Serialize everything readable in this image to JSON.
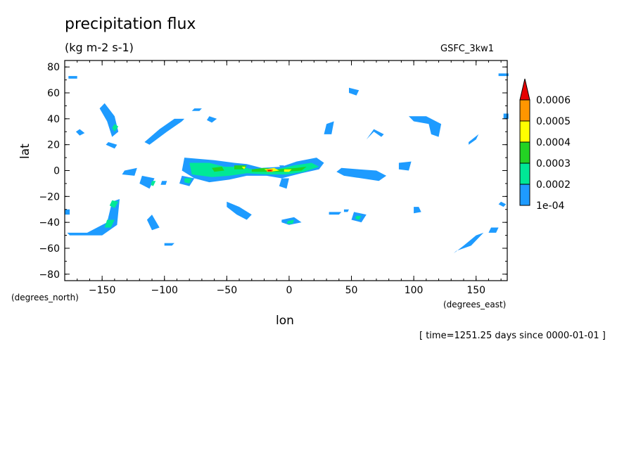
{
  "chart_data": {
    "type": "heatmap",
    "title": "precipitation flux",
    "units": "(kg m-2 s-1)",
    "source": "GSFC_3kw1",
    "xlabel": "lon",
    "ylabel": "lat",
    "x_units": "(degrees_east)",
    "y_units": "(degrees_north)",
    "time_label": "[ time=1251.25 days since 0000-01-01 ]",
    "xlim": [
      -180,
      175
    ],
    "ylim": [
      -85,
      85
    ],
    "x_ticks": [
      -150,
      -100,
      -50,
      0,
      50,
      100,
      150
    ],
    "y_ticks": [
      -80,
      -60,
      -40,
      -20,
      0,
      20,
      40,
      60,
      80
    ],
    "colorbar": {
      "labels": [
        "1e-04",
        "0.0002",
        "0.0003",
        "0.0004",
        "0.0005",
        "0.0006"
      ],
      "colors": [
        "#1e9bff",
        "#00e896",
        "#23d223",
        "#ffff00",
        "#ff9600",
        "#e60000"
      ]
    },
    "regions": [
      {
        "level": 0,
        "points": [
          [
            -148,
            52
          ],
          [
            -140,
            42
          ],
          [
            -137,
            30
          ],
          [
            -142,
            26
          ],
          [
            -146,
            38
          ],
          [
            -152,
            48
          ]
        ]
      },
      {
        "level": 0,
        "points": [
          [
            -145,
            22
          ],
          [
            -138,
            20
          ],
          [
            -140,
            17
          ],
          [
            -147,
            20
          ]
        ]
      },
      {
        "level": 0,
        "points": [
          [
            -168,
            32
          ],
          [
            -164,
            29
          ],
          [
            -168,
            27
          ],
          [
            -171,
            30
          ]
        ]
      },
      {
        "level": 0,
        "points": [
          [
            -177,
            73
          ],
          [
            -170,
            73
          ],
          [
            -170,
            71
          ],
          [
            -177,
            71
          ]
        ]
      },
      {
        "level": 0,
        "points": [
          [
            -112,
            20
          ],
          [
            -98,
            30
          ],
          [
            -86,
            38
          ],
          [
            -84,
            40
          ],
          [
            -92,
            40
          ],
          [
            -104,
            32
          ],
          [
            -116,
            22
          ]
        ]
      },
      {
        "level": 0,
        "points": [
          [
            -76,
            48
          ],
          [
            -70,
            48
          ],
          [
            -72,
            46
          ],
          [
            -78,
            46
          ]
        ]
      },
      {
        "level": 0,
        "points": [
          [
            -64,
            42
          ],
          [
            -58,
            40
          ],
          [
            -62,
            37
          ],
          [
            -66,
            39
          ]
        ]
      },
      {
        "level": 0,
        "points": [
          [
            -84,
            10
          ],
          [
            -60,
            8
          ],
          [
            -44,
            6
          ],
          [
            -34,
            5
          ],
          [
            -22,
            2
          ],
          [
            -6,
            3
          ],
          [
            6,
            7
          ],
          [
            22,
            10
          ],
          [
            28,
            6
          ],
          [
            24,
            1
          ],
          [
            10,
            -2
          ],
          [
            -6,
            -6
          ],
          [
            -18,
            -4
          ],
          [
            -34,
            -4
          ],
          [
            -48,
            -7
          ],
          [
            -64,
            -9
          ],
          [
            -76,
            -6
          ],
          [
            -86,
            0
          ]
        ]
      },
      {
        "level": 0,
        "points": [
          [
            -118,
            -4
          ],
          [
            -108,
            -6
          ],
          [
            -112,
            -14
          ],
          [
            -120,
            -10
          ]
        ]
      },
      {
        "level": 0,
        "points": [
          [
            -86,
            -4
          ],
          [
            -76,
            -6
          ],
          [
            -80,
            -12
          ],
          [
            -88,
            -10
          ]
        ]
      },
      {
        "level": 0,
        "points": [
          [
            -132,
            0
          ],
          [
            -122,
            2
          ],
          [
            -124,
            -4
          ],
          [
            -134,
            -3
          ]
        ]
      },
      {
        "level": 0,
        "points": [
          [
            -102,
            -8
          ],
          [
            -98,
            -8
          ],
          [
            -99,
            -11
          ],
          [
            -103,
            -11
          ]
        ]
      },
      {
        "level": 0,
        "points": [
          [
            -6,
            -6
          ],
          [
            0,
            -6
          ],
          [
            -2,
            -14
          ],
          [
            -8,
            -12
          ]
        ]
      },
      {
        "level": 0,
        "points": [
          [
            42,
            2
          ],
          [
            56,
            1
          ],
          [
            70,
            0
          ],
          [
            78,
            -4
          ],
          [
            72,
            -8
          ],
          [
            58,
            -6
          ],
          [
            44,
            -4
          ],
          [
            38,
            -1
          ]
        ]
      },
      {
        "level": 0,
        "points": [
          [
            88,
            6
          ],
          [
            98,
            7
          ],
          [
            96,
            0
          ],
          [
            88,
            1
          ]
        ]
      },
      {
        "level": 0,
        "points": [
          [
            62,
            24
          ],
          [
            68,
            32
          ],
          [
            76,
            28
          ],
          [
            74,
            26
          ],
          [
            68,
            30
          ]
        ]
      },
      {
        "level": 0,
        "points": [
          [
            30,
            36
          ],
          [
            36,
            38
          ],
          [
            34,
            28
          ],
          [
            28,
            28
          ]
        ]
      },
      {
        "level": 0,
        "points": [
          [
            48,
            64
          ],
          [
            56,
            62
          ],
          [
            54,
            58
          ],
          [
            48,
            60
          ]
        ]
      },
      {
        "level": 0,
        "points": [
          [
            96,
            42
          ],
          [
            110,
            42
          ],
          [
            122,
            36
          ],
          [
            120,
            26
          ],
          [
            114,
            28
          ],
          [
            112,
            36
          ],
          [
            100,
            38
          ]
        ]
      },
      {
        "level": 0,
        "points": [
          [
            172,
            44
          ],
          [
            176,
            44
          ],
          [
            176,
            40
          ],
          [
            172,
            40
          ]
        ]
      },
      {
        "level": 0,
        "points": [
          [
            144,
            22
          ],
          [
            152,
            28
          ],
          [
            150,
            24
          ],
          [
            144,
            20
          ]
        ]
      },
      {
        "level": 0,
        "points": [
          [
            168,
            75
          ],
          [
            176,
            75
          ],
          [
            176,
            73
          ],
          [
            168,
            73
          ]
        ]
      },
      {
        "level": 0,
        "points": [
          [
            -176,
            -50
          ],
          [
            -150,
            -50
          ],
          [
            -138,
            -42
          ],
          [
            -136,
            -22
          ],
          [
            -142,
            -24
          ],
          [
            -146,
            -40
          ],
          [
            -162,
            -48
          ],
          [
            -178,
            -48
          ]
        ]
      },
      {
        "level": 0,
        "points": [
          [
            -180,
            -30
          ],
          [
            -176,
            -30
          ],
          [
            -176,
            -34
          ],
          [
            -180,
            -34
          ]
        ]
      },
      {
        "level": 0,
        "points": [
          [
            -110,
            -34
          ],
          [
            -104,
            -44
          ],
          [
            -110,
            -46
          ],
          [
            -114,
            -38
          ]
        ]
      },
      {
        "level": 0,
        "points": [
          [
            -100,
            -56
          ],
          [
            -92,
            -56
          ],
          [
            -94,
            -58
          ],
          [
            -100,
            -58
          ]
        ]
      },
      {
        "level": 0,
        "points": [
          [
            -50,
            -24
          ],
          [
            -40,
            -28
          ],
          [
            -30,
            -34
          ],
          [
            -34,
            -38
          ],
          [
            -42,
            -34
          ],
          [
            -50,
            -28
          ]
        ]
      },
      {
        "level": 0,
        "points": [
          [
            -6,
            -38
          ],
          [
            4,
            -36
          ],
          [
            10,
            -40
          ],
          [
            0,
            -42
          ],
          [
            -6,
            -40
          ]
        ]
      },
      {
        "level": 0,
        "points": [
          [
            52,
            -32
          ],
          [
            62,
            -34
          ],
          [
            58,
            -40
          ],
          [
            50,
            -38
          ]
        ]
      },
      {
        "level": 0,
        "points": [
          [
            32,
            -32
          ],
          [
            42,
            -32
          ],
          [
            40,
            -34
          ],
          [
            32,
            -34
          ]
        ]
      },
      {
        "level": 0,
        "points": [
          [
            44,
            -30
          ],
          [
            48,
            -30
          ],
          [
            47,
            -32
          ],
          [
            44,
            -32
          ]
        ]
      },
      {
        "level": 0,
        "points": [
          [
            100,
            -28
          ],
          [
            104,
            -28
          ],
          [
            106,
            -32
          ],
          [
            100,
            -33
          ]
        ]
      },
      {
        "level": 0,
        "points": [
          [
            134,
            -62
          ],
          [
            146,
            -58
          ],
          [
            156,
            -48
          ],
          [
            150,
            -50
          ],
          [
            140,
            -58
          ],
          [
            132,
            -64
          ]
        ]
      },
      {
        "level": 0,
        "points": [
          [
            162,
            -44
          ],
          [
            168,
            -44
          ],
          [
            166,
            -48
          ],
          [
            160,
            -48
          ]
        ]
      },
      {
        "level": 0,
        "points": [
          [
            170,
            -24
          ],
          [
            174,
            -26
          ],
          [
            172,
            -28
          ],
          [
            168,
            -26
          ]
        ]
      },
      {
        "level": 0,
        "points": [
          [
            -8,
            4
          ],
          [
            -4,
            4
          ],
          [
            -6,
            1
          ]
        ]
      },
      {
        "level": 1,
        "points": [
          [
            -80,
            6
          ],
          [
            -64,
            6
          ],
          [
            -52,
            3
          ],
          [
            -38,
            3
          ],
          [
            -26,
            0
          ],
          [
            -10,
            1
          ],
          [
            4,
            4
          ],
          [
            18,
            6
          ],
          [
            24,
            3
          ],
          [
            12,
            -1
          ],
          [
            -2,
            -3
          ],
          [
            -18,
            -3
          ],
          [
            -34,
            -2
          ],
          [
            -48,
            -4
          ],
          [
            -62,
            -5
          ],
          [
            -78,
            -3
          ]
        ]
      },
      {
        "level": 1,
        "points": [
          [
            -142,
            -23
          ],
          [
            -137,
            -24
          ],
          [
            -140,
            -29
          ],
          [
            -144,
            -27
          ]
        ]
      },
      {
        "level": 1,
        "points": [
          [
            -146,
            -38
          ],
          [
            -140,
            -38
          ],
          [
            -143,
            -44
          ],
          [
            -148,
            -44
          ]
        ]
      },
      {
        "level": 1,
        "points": [
          [
            -1,
            -39
          ],
          [
            4,
            -38
          ],
          [
            3,
            -41
          ],
          [
            -2,
            -41
          ]
        ]
      },
      {
        "level": 1,
        "points": [
          [
            -140,
            36
          ],
          [
            -137,
            34
          ],
          [
            -140,
            30
          ],
          [
            -142,
            33
          ]
        ]
      },
      {
        "level": 1,
        "points": [
          [
            54,
            -35
          ],
          [
            58,
            -35
          ],
          [
            56,
            -38
          ],
          [
            53,
            -37
          ]
        ]
      },
      {
        "level": 1,
        "points": [
          [
            -84,
            -6
          ],
          [
            -78,
            -6
          ],
          [
            -80,
            -10
          ],
          [
            -84,
            -9
          ]
        ]
      },
      {
        "level": 1,
        "points": [
          [
            -110,
            -8
          ],
          [
            -107,
            -8
          ],
          [
            -109,
            -12
          ],
          [
            -111,
            -11
          ]
        ]
      },
      {
        "level": 2,
        "points": [
          [
            -62,
            2
          ],
          [
            -54,
            3
          ],
          [
            -52,
            0
          ],
          [
            -60,
            -1
          ]
        ]
      },
      {
        "level": 2,
        "points": [
          [
            -44,
            4
          ],
          [
            -36,
            4
          ],
          [
            -36,
            1
          ],
          [
            -44,
            1
          ]
        ]
      },
      {
        "level": 2,
        "points": [
          [
            -30,
            1
          ],
          [
            -20,
            2
          ],
          [
            -10,
            1
          ],
          [
            6,
            2
          ],
          [
            14,
            3
          ],
          [
            10,
            0
          ],
          [
            -4,
            -1
          ],
          [
            -20,
            -1
          ],
          [
            -30,
            -1
          ]
        ]
      },
      {
        "level": 2,
        "points": [
          [
            -38,
            4
          ],
          [
            -34,
            4
          ],
          [
            -36,
            1
          ]
        ]
      },
      {
        "level": 3,
        "points": [
          [
            -20,
            1
          ],
          [
            -12,
            2
          ],
          [
            -8,
            0
          ],
          [
            -16,
            -1
          ]
        ]
      },
      {
        "level": 3,
        "points": [
          [
            -4,
            1
          ],
          [
            2,
            1
          ],
          [
            0,
            -1
          ],
          [
            -4,
            -1
          ]
        ]
      },
      {
        "level": 3,
        "points": [
          [
            -38,
            3
          ],
          [
            -35,
            3
          ],
          [
            -36,
            1
          ]
        ]
      },
      {
        "level": 4,
        "points": [
          [
            -18,
            1
          ],
          [
            -13,
            1
          ],
          [
            -13,
            -1
          ],
          [
            -18,
            -1
          ]
        ]
      },
      {
        "level": 5,
        "points": [
          [
            -17,
            0.5
          ],
          [
            -14,
            0.5
          ],
          [
            -14,
            -0.5
          ],
          [
            -17,
            -0.5
          ]
        ]
      }
    ]
  }
}
